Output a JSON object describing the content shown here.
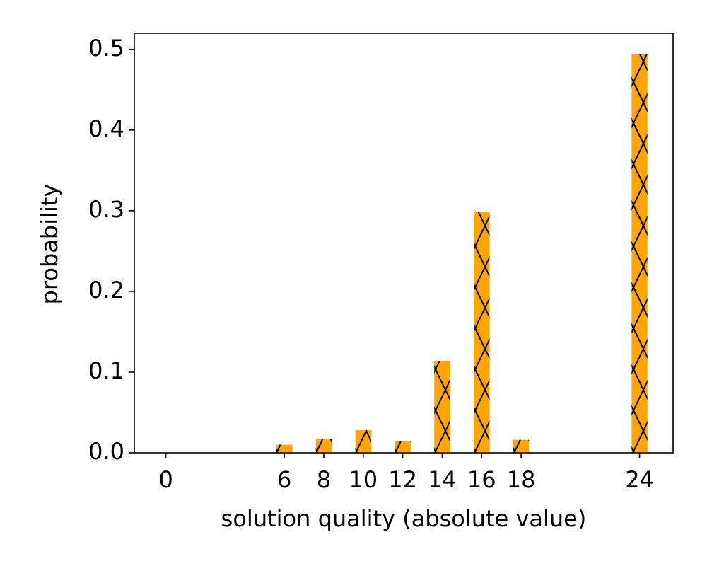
{
  "chart_data": {
    "type": "bar",
    "x": [
      6,
      8,
      10,
      12,
      14,
      16,
      18,
      24
    ],
    "values": [
      0.01,
      0.017,
      0.028,
      0.014,
      0.114,
      0.299,
      0.016,
      0.494
    ],
    "color": "#ffa500",
    "hatch": "x",
    "xlabel": "solution quality (absolute value)",
    "ylabel": "probability",
    "xlim": [
      -1.6,
      25.7
    ],
    "xticks": [
      0,
      6,
      8,
      10,
      12,
      14,
      16,
      18,
      24
    ],
    "ylim": [
      0,
      0.52
    ],
    "yticks": [
      {
        "value": 0,
        "label": "0.0"
      },
      0.1,
      0.2,
      0.3,
      0.4,
      0.5
    ]
  }
}
